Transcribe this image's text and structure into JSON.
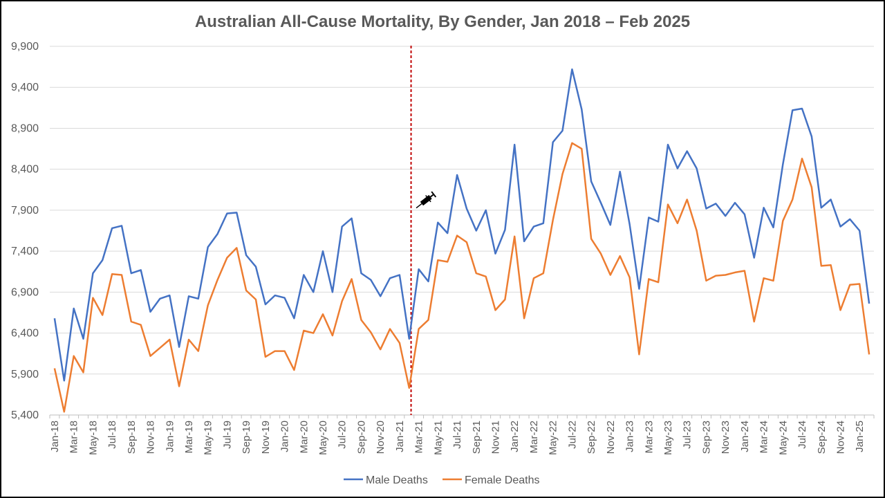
{
  "chart_data": {
    "type": "line",
    "title": "Australian All-Cause Mortality, By Gender, Jan 2018 – Feb 2025",
    "xlabel": "",
    "ylabel": "",
    "ylim": [
      5400,
      9900
    ],
    "yticks": [
      "5,400",
      "5,900",
      "6,400",
      "6,900",
      "7,400",
      "7,900",
      "8,400",
      "8,900",
      "9,400",
      "9,900"
    ],
    "grid": "horizontal",
    "legend_position": "bottom",
    "x": [
      "Jan-18",
      "Feb-18",
      "Mar-18",
      "Apr-18",
      "May-18",
      "Jun-18",
      "Jul-18",
      "Aug-18",
      "Sep-18",
      "Oct-18",
      "Nov-18",
      "Dec-18",
      "Jan-19",
      "Feb-19",
      "Mar-19",
      "Apr-19",
      "May-19",
      "Jun-19",
      "Jul-19",
      "Aug-19",
      "Sep-19",
      "Oct-19",
      "Nov-19",
      "Dec-19",
      "Jan-20",
      "Feb-20",
      "Mar-20",
      "Apr-20",
      "May-20",
      "Jun-20",
      "Jul-20",
      "Aug-20",
      "Sep-20",
      "Oct-20",
      "Nov-20",
      "Dec-20",
      "Jan-21",
      "Feb-21",
      "Mar-21",
      "Apr-21",
      "May-21",
      "Jun-21",
      "Jul-21",
      "Aug-21",
      "Sep-21",
      "Oct-21",
      "Nov-21",
      "Dec-21",
      "Jan-22",
      "Feb-22",
      "Mar-22",
      "Apr-22",
      "May-22",
      "Jun-22",
      "Jul-22",
      "Aug-22",
      "Sep-22",
      "Oct-22",
      "Nov-22",
      "Dec-22",
      "Jan-23",
      "Feb-23",
      "Mar-23",
      "Apr-23",
      "May-23",
      "Jun-23",
      "Jul-23",
      "Aug-23",
      "Sep-23",
      "Oct-23",
      "Nov-23",
      "Dec-23",
      "Jan-24",
      "Feb-24",
      "Mar-24",
      "Apr-24",
      "May-24",
      "Jun-24",
      "Jul-24",
      "Aug-24",
      "Sep-24",
      "Oct-24",
      "Nov-24",
      "Dec-24",
      "Jan-25",
      "Feb-25"
    ],
    "x_tick_labels": [
      "Jan-18",
      "Mar-18",
      "May-18",
      "Jul-18",
      "Sep-18",
      "Nov-18",
      "Jan-19",
      "Mar-19",
      "May-19",
      "Jul-19",
      "Sep-19",
      "Nov-19",
      "Jan-20",
      "Mar-20",
      "May-20",
      "Jul-20",
      "Sep-20",
      "Nov-20",
      "Jan-21",
      "Mar-21",
      "May-21",
      "Jul-21",
      "Sep-21",
      "Nov-21",
      "Jan-22",
      "Mar-22",
      "May-22",
      "Jul-22",
      "Sep-22",
      "Nov-22",
      "Jan-23",
      "Mar-23",
      "May-23",
      "Jul-23",
      "Sep-23",
      "Nov-23",
      "Jan-24",
      "Mar-24",
      "May-24",
      "Jul-24",
      "Sep-24",
      "Nov-24",
      "Jan-25"
    ],
    "series": [
      {
        "name": "Male Deaths",
        "color": "#4472C4",
        "values": [
          6580,
          5820,
          6700,
          6330,
          7130,
          7290,
          7680,
          7710,
          7130,
          7170,
          6660,
          6820,
          6860,
          6230,
          6850,
          6820,
          7450,
          7610,
          7860,
          7870,
          7350,
          7210,
          6750,
          6860,
          6830,
          6580,
          7110,
          6900,
          7400,
          6900,
          7700,
          7800,
          7130,
          7050,
          6850,
          7070,
          7110,
          6330,
          7180,
          7030,
          7750,
          7620,
          8330,
          7920,
          7650,
          7900,
          7370,
          7660,
          8700,
          7520,
          7700,
          7740,
          8730,
          8870,
          9620,
          9130,
          8250,
          7990,
          7720,
          8370,
          7730,
          6940,
          7810,
          7760,
          8700,
          8410,
          8620,
          8410,
          7920,
          7980,
          7830,
          7990,
          7850,
          7320,
          7930,
          7690,
          8460,
          9120,
          9140,
          8800,
          7930,
          8030,
          7700,
          7790,
          7650,
          6760
        ]
      },
      {
        "name": "Female Deaths",
        "color": "#ED7D31",
        "values": [
          5970,
          5440,
          6120,
          5920,
          6830,
          6620,
          7120,
          7110,
          6540,
          6500,
          6120,
          6220,
          6320,
          5750,
          6320,
          6180,
          6740,
          7050,
          7320,
          7440,
          6920,
          6810,
          6110,
          6180,
          6180,
          5950,
          6430,
          6400,
          6630,
          6370,
          6790,
          7060,
          6560,
          6410,
          6200,
          6450,
          6280,
          5730,
          6450,
          6560,
          7290,
          7270,
          7590,
          7510,
          7130,
          7090,
          6680,
          6810,
          7580,
          6580,
          7070,
          7130,
          7780,
          8340,
          8720,
          8650,
          7550,
          7370,
          7110,
          7340,
          7080,
          6140,
          7060,
          7020,
          7970,
          7740,
          8030,
          7650,
          7040,
          7100,
          7110,
          7140,
          7160,
          6540,
          7070,
          7040,
          7770,
          8030,
          8530,
          8180,
          7220,
          7230,
          6680,
          6990,
          7000,
          6140
        ]
      }
    ],
    "vertical_marker": {
      "position_x_index": 37.2,
      "color": "#C00000",
      "style": "dashed",
      "icon": "syringe-icon"
    }
  }
}
